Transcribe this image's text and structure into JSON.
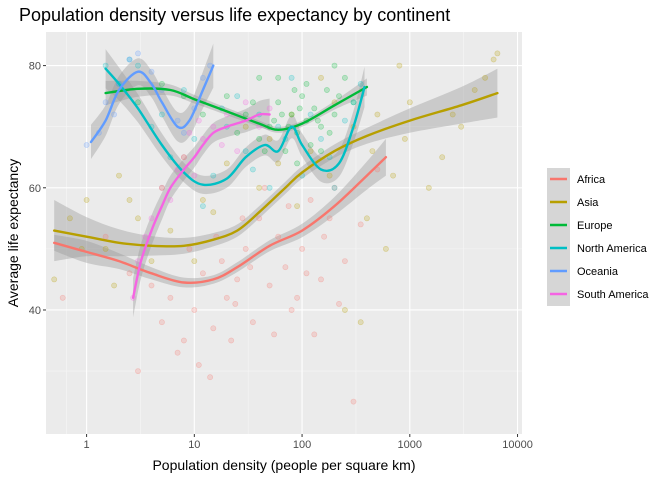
{
  "chart_data": {
    "type": "scatter",
    "title": "Population density versus life expectancy by continent",
    "xlabel": "Population density (people per square km)",
    "ylabel": "Average life expectancy",
    "x_scale": "log10",
    "xlim": [
      0.42,
      11000
    ],
    "ylim": [
      19.7,
      85.5
    ],
    "x_ticks": [
      {
        "value": 1,
        "label": "1"
      },
      {
        "value": 10,
        "label": "10"
      },
      {
        "value": 100,
        "label": "100"
      },
      {
        "value": 1000,
        "label": "1000"
      },
      {
        "value": 10000,
        "label": "10000"
      }
    ],
    "y_ticks": [
      {
        "value": 40,
        "label": "40"
      },
      {
        "value": 60,
        "label": "60"
      },
      {
        "value": 80,
        "label": "80"
      }
    ],
    "grid": true,
    "legend_position": "right",
    "series": [
      {
        "name": "Africa",
        "color": "#F8766D",
        "smooth": [
          [
            0.5,
            51
          ],
          [
            1,
            49.5
          ],
          [
            2,
            48
          ],
          [
            4,
            46
          ],
          [
            8,
            44.5
          ],
          [
            15,
            45
          ],
          [
            25,
            47
          ],
          [
            50,
            50.5
          ],
          [
            100,
            53
          ],
          [
            200,
            57
          ],
          [
            400,
            62
          ],
          [
            600,
            65
          ]
        ],
        "band": [
          1.3,
          1.8,
          1.3,
          1.0,
          0.8,
          0.7,
          0.8,
          0.9,
          1.1,
          1.5,
          2.3,
          3.0
        ],
        "points": [
          [
            4,
            44
          ],
          [
            5,
            38
          ],
          [
            6,
            42
          ],
          [
            8,
            35
          ],
          [
            10,
            40
          ],
          [
            12,
            46
          ],
          [
            15,
            37
          ],
          [
            18,
            48
          ],
          [
            20,
            42
          ],
          [
            25,
            45
          ],
          [
            30,
            50
          ],
          [
            35,
            38
          ],
          [
            40,
            55
          ],
          [
            50,
            44
          ],
          [
            60,
            52
          ],
          [
            70,
            47
          ],
          [
            80,
            40
          ],
          [
            100,
            50
          ],
          [
            120,
            58
          ],
          [
            150,
            45
          ],
          [
            180,
            55
          ],
          [
            200,
            60
          ],
          [
            250,
            48
          ],
          [
            3,
            30
          ],
          [
            7,
            33
          ],
          [
            9,
            50
          ],
          [
            11,
            31
          ],
          [
            14,
            29
          ],
          [
            22,
            35
          ],
          [
            28,
            55
          ],
          [
            45,
            60
          ],
          [
            90,
            42
          ],
          [
            130,
            36
          ],
          [
            300,
            25
          ],
          [
            0.6,
            42
          ],
          [
            1.5,
            52
          ],
          [
            2.5,
            46
          ],
          [
            16,
            52
          ],
          [
            24,
            41
          ],
          [
            33,
            47
          ],
          [
            55,
            36
          ],
          [
            75,
            57
          ],
          [
            110,
            46
          ],
          [
            160,
            52
          ],
          [
            220,
            41
          ],
          [
            350,
            54
          ],
          [
            500,
            63
          ]
        ]
      },
      {
        "name": "Asia",
        "color": "#B79F00",
        "smooth": [
          [
            0.5,
            53
          ],
          [
            1,
            52
          ],
          [
            2,
            51
          ],
          [
            4,
            50.5
          ],
          [
            8,
            50.5
          ],
          [
            15,
            51.5
          ],
          [
            25,
            53
          ],
          [
            40,
            56
          ],
          [
            70,
            60
          ],
          [
            100,
            62.5
          ],
          [
            200,
            66
          ],
          [
            400,
            68.5
          ],
          [
            1000,
            71
          ],
          [
            3000,
            73.5
          ],
          [
            6500,
            75.5
          ]
        ],
        "band": [
          5.0,
          3.2,
          2.2,
          1.6,
          1.3,
          1.1,
          1.0,
          1.0,
          1.0,
          1.0,
          1.1,
          1.3,
          2.0,
          3.0,
          4.0
        ],
        "points": [
          [
            0.5,
            45
          ],
          [
            0.7,
            55
          ],
          [
            1,
            58
          ],
          [
            1.5,
            50
          ],
          [
            2,
            62
          ],
          [
            3,
            55
          ],
          [
            5,
            60
          ],
          [
            8,
            65
          ],
          [
            12,
            58
          ],
          [
            20,
            64
          ],
          [
            30,
            70
          ],
          [
            50,
            68
          ],
          [
            80,
            72
          ],
          [
            120,
            66
          ],
          [
            200,
            74
          ],
          [
            300,
            70
          ],
          [
            500,
            72
          ],
          [
            700,
            62
          ],
          [
            1000,
            74
          ],
          [
            2000,
            65
          ],
          [
            3000,
            70
          ],
          [
            5000,
            78
          ],
          [
            6000,
            81
          ],
          [
            6500,
            82
          ],
          [
            400,
            55
          ],
          [
            600,
            50
          ],
          [
            250,
            40
          ],
          [
            350,
            38
          ],
          [
            1500,
            60
          ],
          [
            150,
            78
          ],
          [
            800,
            80
          ],
          [
            4000,
            76
          ],
          [
            0.9,
            50
          ],
          [
            1.8,
            44
          ],
          [
            2.5,
            58
          ],
          [
            4,
            48
          ],
          [
            6,
            53
          ],
          [
            10,
            48
          ],
          [
            15,
            56
          ],
          [
            40,
            60
          ],
          [
            60,
            64
          ],
          [
            90,
            57
          ],
          [
            180,
            62
          ],
          [
            450,
            66
          ],
          [
            900,
            68
          ],
          [
            2500,
            72
          ]
        ]
      },
      {
        "name": "Europe",
        "color": "#00BA38",
        "smooth": [
          [
            1.5,
            75.5
          ],
          [
            3,
            76.2
          ],
          [
            6,
            76
          ],
          [
            10,
            74.5
          ],
          [
            20,
            72.5
          ],
          [
            40,
            70.5
          ],
          [
            60,
            69.5
          ],
          [
            100,
            70.5
          ],
          [
            200,
            73.5
          ],
          [
            400,
            76.5
          ]
        ],
        "band": [
          2.0,
          1.3,
          0.9,
          0.7,
          0.6,
          0.5,
          0.5,
          0.5,
          0.7,
          1.4
        ],
        "points": [
          [
            20,
            75
          ],
          [
            30,
            72
          ],
          [
            40,
            68
          ],
          [
            50,
            70
          ],
          [
            60,
            74
          ],
          [
            70,
            66
          ],
          [
            80,
            72
          ],
          [
            90,
            69
          ],
          [
            100,
            75
          ],
          [
            110,
            71
          ],
          [
            120,
            67
          ],
          [
            130,
            73
          ],
          [
            150,
            70
          ],
          [
            170,
            76
          ],
          [
            200,
            72
          ],
          [
            250,
            78
          ],
          [
            300,
            74
          ],
          [
            60,
            78
          ],
          [
            90,
            64
          ],
          [
            150,
            66
          ],
          [
            40,
            78
          ],
          [
            110,
            77
          ],
          [
            200,
            80
          ],
          [
            75,
            70
          ],
          [
            140,
            71
          ],
          [
            3,
            74
          ],
          [
            5,
            77
          ],
          [
            8,
            75
          ],
          [
            12,
            72
          ],
          [
            25,
            69
          ],
          [
            35,
            74
          ],
          [
            45,
            66
          ],
          [
            55,
            71
          ],
          [
            65,
            72
          ],
          [
            85,
            76
          ],
          [
            95,
            73
          ],
          [
            180,
            69
          ],
          [
            220,
            75
          ]
        ]
      },
      {
        "name": "North America",
        "color": "#00BFC4",
        "smooth": [
          [
            1.5,
            79.5
          ],
          [
            2,
            77
          ],
          [
            3,
            73
          ],
          [
            5,
            67
          ],
          [
            8,
            62.5
          ],
          [
            12,
            60.5
          ],
          [
            20,
            61.5
          ],
          [
            30,
            65
          ],
          [
            45,
            67
          ],
          [
            60,
            66
          ],
          [
            80,
            70
          ],
          [
            100,
            67
          ],
          [
            150,
            63
          ],
          [
            220,
            64
          ],
          [
            300,
            70
          ],
          [
            380,
            76.5
          ]
        ],
        "band": [
          3.2,
          2.7,
          2.3,
          1.9,
          1.6,
          1.5,
          1.5,
          1.6,
          1.7,
          1.8,
          1.9,
          1.9,
          2.0,
          2.2,
          2.6,
          3.3
        ],
        "points": [
          [
            2,
            77
          ],
          [
            3,
            80
          ],
          [
            5,
            72
          ],
          [
            8,
            76
          ],
          [
            10,
            68
          ],
          [
            15,
            62
          ],
          [
            20,
            70
          ],
          [
            25,
            75
          ],
          [
            30,
            66
          ],
          [
            40,
            72
          ],
          [
            50,
            60
          ],
          [
            60,
            70
          ],
          [
            80,
            78
          ],
          [
            100,
            62
          ],
          [
            150,
            68
          ],
          [
            200,
            60
          ],
          [
            300,
            74
          ],
          [
            1.5,
            80
          ],
          [
            2.5,
            81
          ],
          [
            4,
            70
          ],
          [
            6,
            65
          ],
          [
            12,
            57
          ],
          [
            18,
            73
          ],
          [
            35,
            63
          ],
          [
            70,
            68
          ],
          [
            120,
            72
          ],
          [
            180,
            65
          ],
          [
            250,
            71
          ],
          [
            350,
            77
          ]
        ]
      },
      {
        "name": "Oceania",
        "color": "#619CFF",
        "smooth": [
          [
            1.1,
            67.5
          ],
          [
            1.5,
            71
          ],
          [
            2,
            76
          ],
          [
            3,
            79
          ],
          [
            4,
            77
          ],
          [
            5,
            74
          ],
          [
            7,
            70
          ],
          [
            9,
            71
          ],
          [
            12,
            76
          ],
          [
            15,
            80
          ]
        ],
        "band": [
          2.8,
          2.5,
          2.3,
          2.2,
          2.2,
          2.3,
          2.4,
          2.6,
          3.0,
          3.6
        ],
        "points": [
          [
            1,
            67
          ],
          [
            1.3,
            69
          ],
          [
            1.5,
            74
          ],
          [
            2,
            77
          ],
          [
            2.5,
            81
          ],
          [
            3,
            82
          ],
          [
            4,
            79
          ],
          [
            5,
            76
          ],
          [
            7,
            71
          ],
          [
            8,
            69
          ],
          [
            10,
            73
          ],
          [
            12,
            78
          ],
          [
            14,
            80
          ],
          [
            1.8,
            72
          ]
        ]
      },
      {
        "name": "South America",
        "color": "#F564E3",
        "smooth": [
          [
            2.7,
            42
          ],
          [
            3.2,
            48
          ],
          [
            4,
            53
          ],
          [
            5,
            57
          ],
          [
            6,
            60
          ],
          [
            8,
            63
          ],
          [
            10,
            65
          ],
          [
            12,
            67
          ],
          [
            15,
            69
          ],
          [
            20,
            70
          ],
          [
            30,
            71
          ],
          [
            40,
            72
          ],
          [
            50,
            72
          ]
        ],
        "band": [
          3.2,
          2.8,
          2.5,
          2.2,
          2.0,
          1.8,
          1.7,
          1.6,
          1.6,
          1.7,
          1.9,
          2.2,
          2.6
        ],
        "points": [
          [
            2.7,
            42
          ],
          [
            3,
            48
          ],
          [
            4,
            55
          ],
          [
            5,
            60
          ],
          [
            6,
            58
          ],
          [
            8,
            65
          ],
          [
            10,
            62
          ],
          [
            12,
            68
          ],
          [
            15,
            70
          ],
          [
            20,
            72
          ],
          [
            25,
            66
          ],
          [
            30,
            74
          ],
          [
            40,
            70
          ],
          [
            50,
            73
          ],
          [
            3.5,
            52
          ],
          [
            7,
            63
          ],
          [
            11,
            71
          ],
          [
            18,
            67
          ],
          [
            9,
            69
          ]
        ]
      }
    ]
  }
}
